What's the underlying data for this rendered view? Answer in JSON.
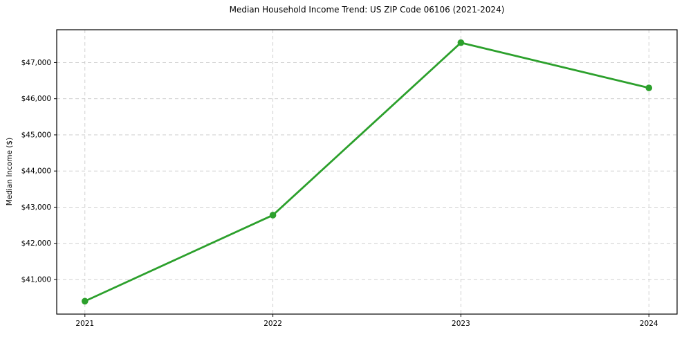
{
  "figure": {
    "background": "#ffffff"
  },
  "chart_data": {
    "type": "line",
    "title": "Median Household Income Trend: US ZIP Code 06106 (2021-2024)",
    "xlabel": "",
    "ylabel": "Median Income ($)",
    "categories": [
      "2021",
      "2022",
      "2023",
      "2024"
    ],
    "series": [
      {
        "name": "Median Income",
        "values": [
          40400,
          42780,
          47550,
          46300
        ]
      }
    ],
    "yticks": [
      {
        "value": 41000,
        "label": "$41,000"
      },
      {
        "value": 42000,
        "label": "$42,000"
      },
      {
        "value": 43000,
        "label": "$43,000"
      },
      {
        "value": 44000,
        "label": "$44,000"
      },
      {
        "value": 45000,
        "label": "$45,000"
      },
      {
        "value": 46000,
        "label": "$46,000"
      },
      {
        "value": 47000,
        "label": "$47,000"
      }
    ],
    "ylim": [
      40042,
      47908
    ],
    "x_margin": 0.15,
    "grid": true,
    "legend_position": "none",
    "line_color": "#2ca02c",
    "marker": "circle",
    "grid_color": "#c9c9c9",
    "axis_color": "#000000"
  }
}
